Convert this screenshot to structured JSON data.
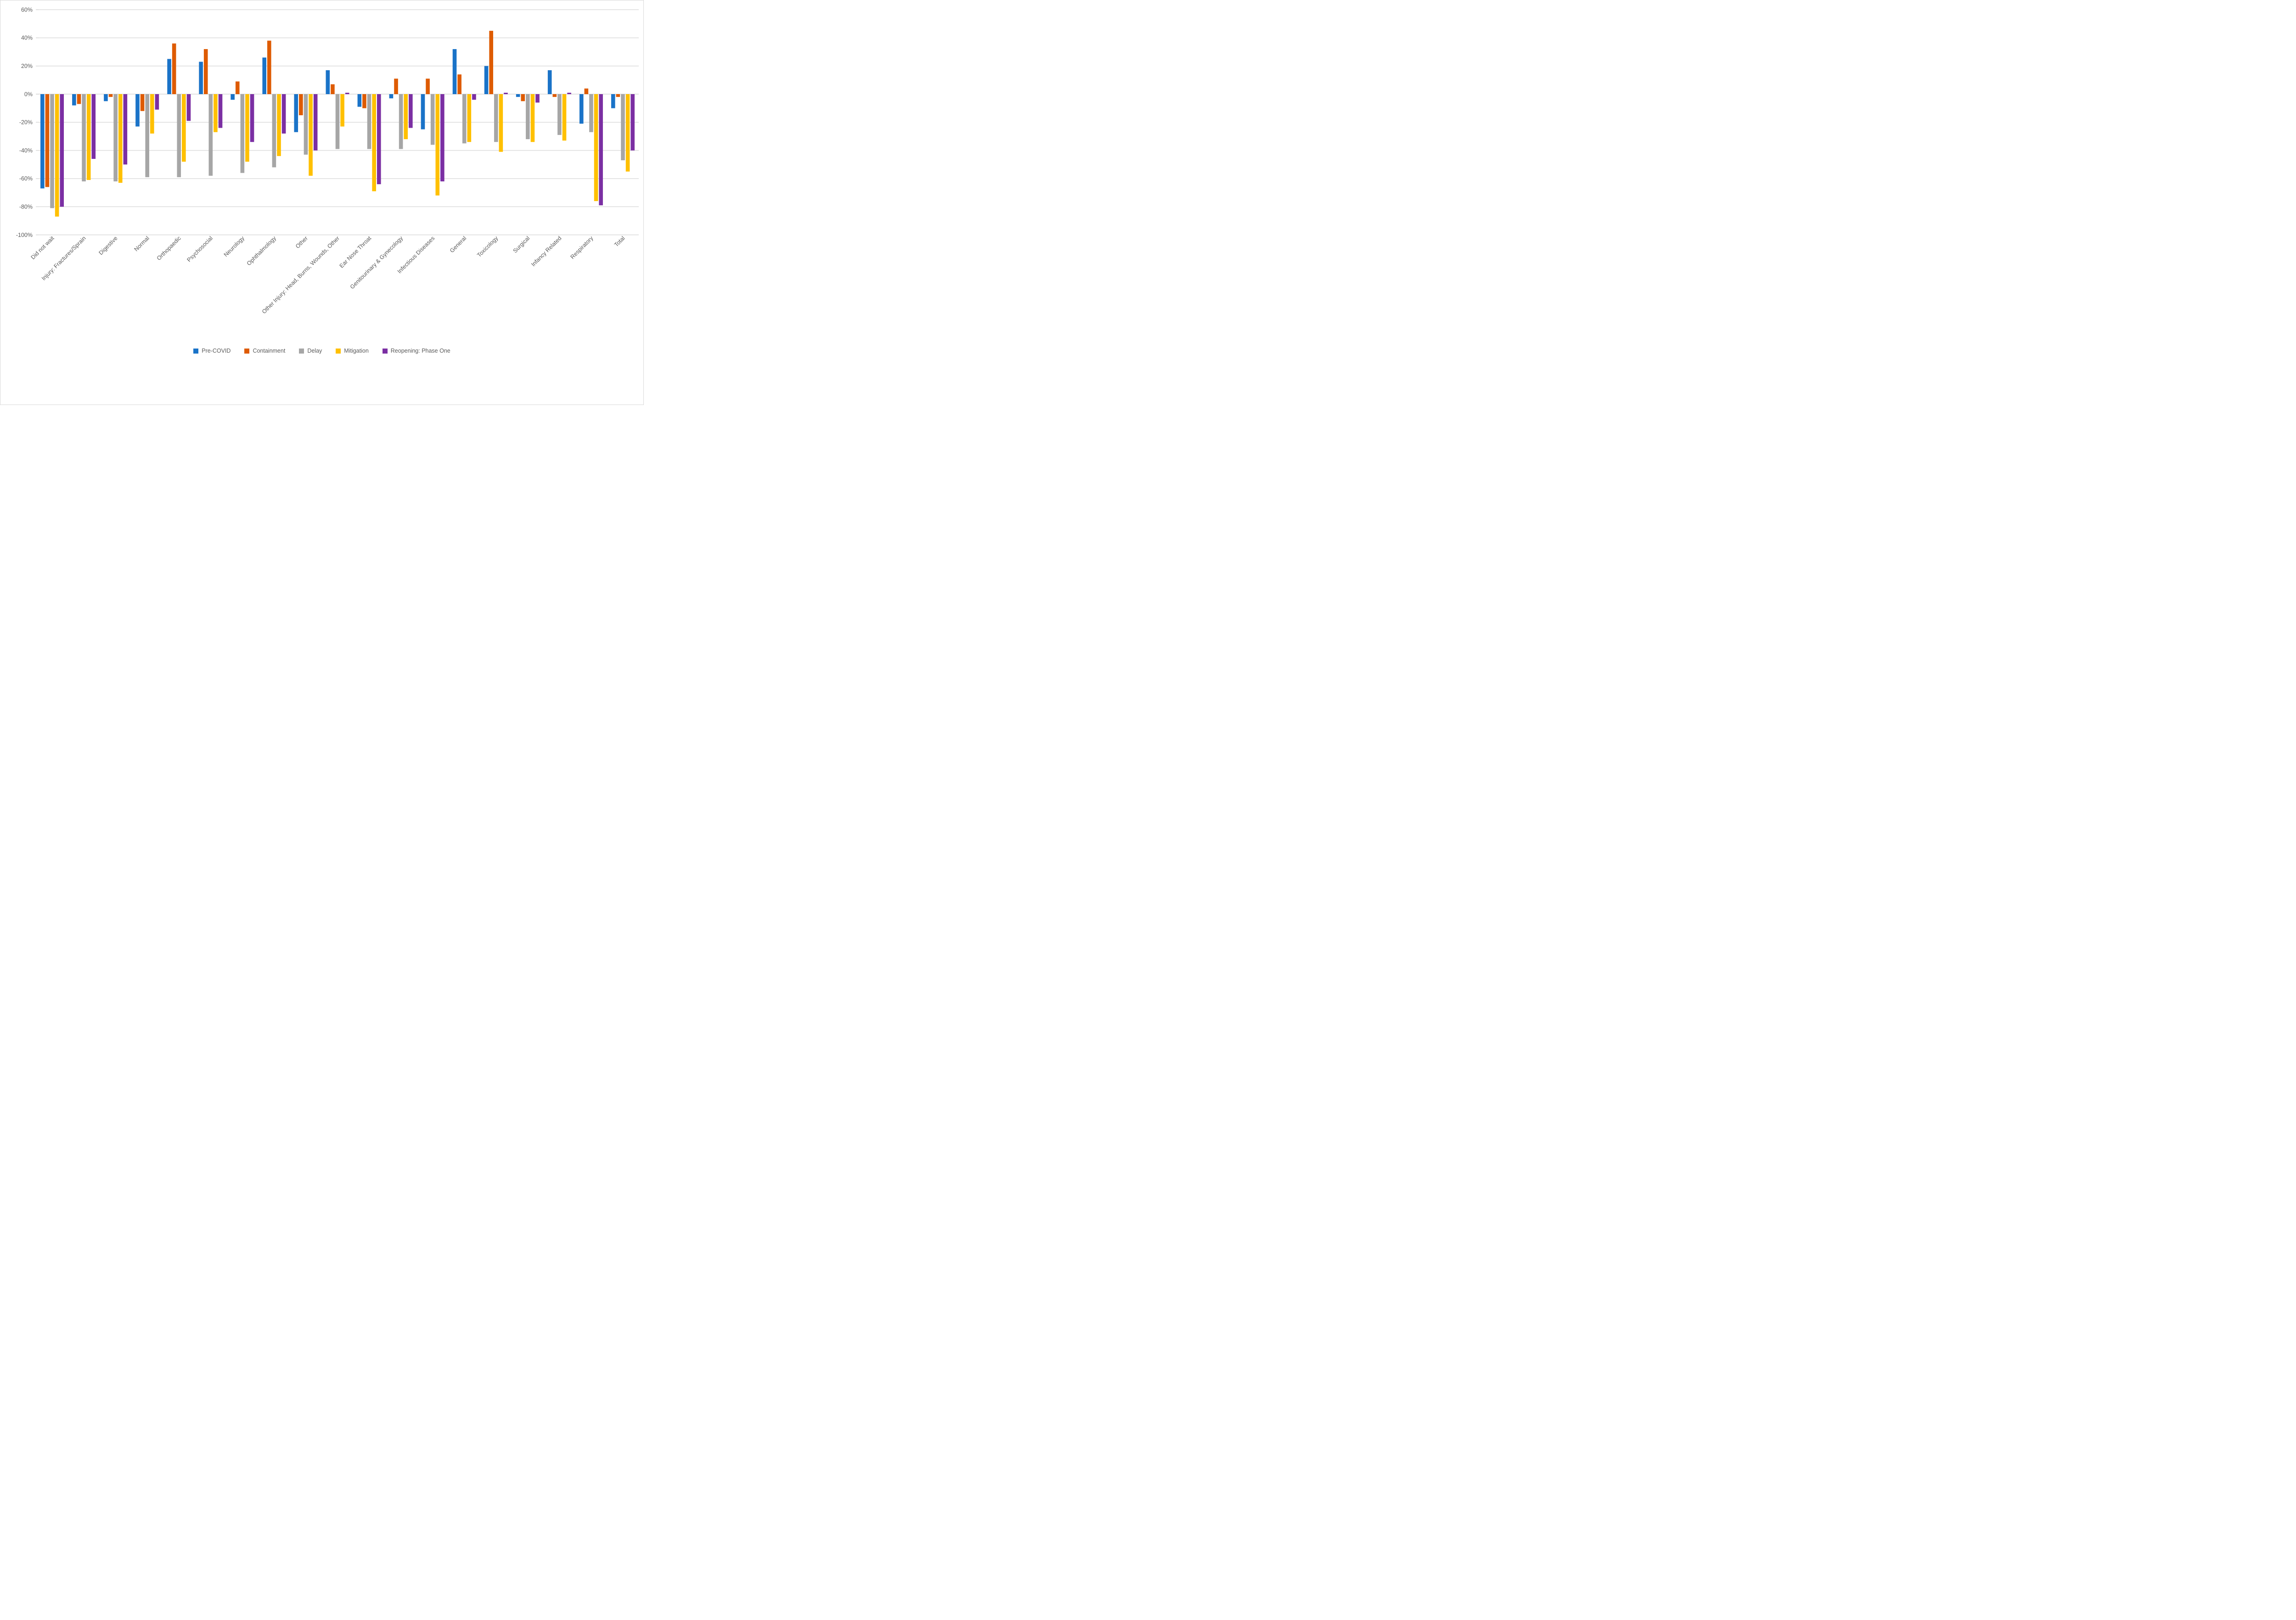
{
  "chart_data": {
    "type": "bar",
    "title": "",
    "xlabel": "",
    "ylabel": "",
    "ylim": [
      -100,
      60
    ],
    "ytick_step": 20,
    "yticks": [
      "60%",
      "40%",
      "20%",
      "0%",
      "-20%",
      "-40%",
      "-60%",
      "-80%",
      "-100%"
    ],
    "grid": true,
    "legend_position": "bottom",
    "categories": [
      "Did not wait",
      "Injury: Fractures/Sprain",
      "Digestive",
      "Normal",
      "Orthopaedic",
      "Psychosocial",
      "Neurology",
      "Ophthalmology",
      "Other",
      "Other Injury: Head, Burns, Wounds, Other",
      "Ear Nose Throat",
      "Genitourinary & Gynecology",
      "Infectious Diseases",
      "General",
      "Toxicology",
      "Surgical",
      "Infancy Related",
      "Respiratory",
      "Total"
    ],
    "series": [
      {
        "name": "Pre-COVID",
        "color": "#1A73C8",
        "values": [
          -67,
          -8,
          -5,
          -23,
          25,
          23,
          -4,
          26,
          -27,
          17,
          -9,
          -3,
          -25,
          32,
          20,
          -2,
          17,
          -21,
          -10
        ]
      },
      {
        "name": "Containment",
        "color": "#DE5B02",
        "values": [
          -66,
          -7,
          -2,
          -12,
          36,
          32,
          9,
          38,
          -15,
          7,
          -10,
          11,
          11,
          14,
          45,
          -5,
          -2,
          4,
          -2
        ]
      },
      {
        "name": "Delay",
        "color": "#A6A6A6",
        "values": [
          -81,
          -62,
          -62,
          -59,
          -59,
          -58,
          -56,
          -52,
          -43,
          -39,
          -39,
          -39,
          -36,
          -35,
          -34,
          -32,
          -29,
          -27,
          -47
        ]
      },
      {
        "name": "Mitigation",
        "color": "#FFC000",
        "values": [
          -87,
          -61,
          -63,
          -28,
          -48,
          -27,
          -48,
          -44,
          -58,
          -23,
          -69,
          -32,
          -72,
          -34,
          -41,
          -34,
          -33,
          -76,
          -55
        ]
      },
      {
        "name": "Reopening: Phase One",
        "color": "#7B2FA3",
        "values": [
          -80,
          -46,
          -50,
          -11,
          -19,
          -24,
          -34,
          -28,
          -40,
          1,
          -64,
          -24,
          -62,
          -4,
          1,
          -6,
          1,
          -79,
          -40
        ]
      }
    ]
  },
  "style": {
    "grid_color": "#d9d9d9",
    "axis_text_color": "#595959",
    "background": "#ffffff"
  }
}
